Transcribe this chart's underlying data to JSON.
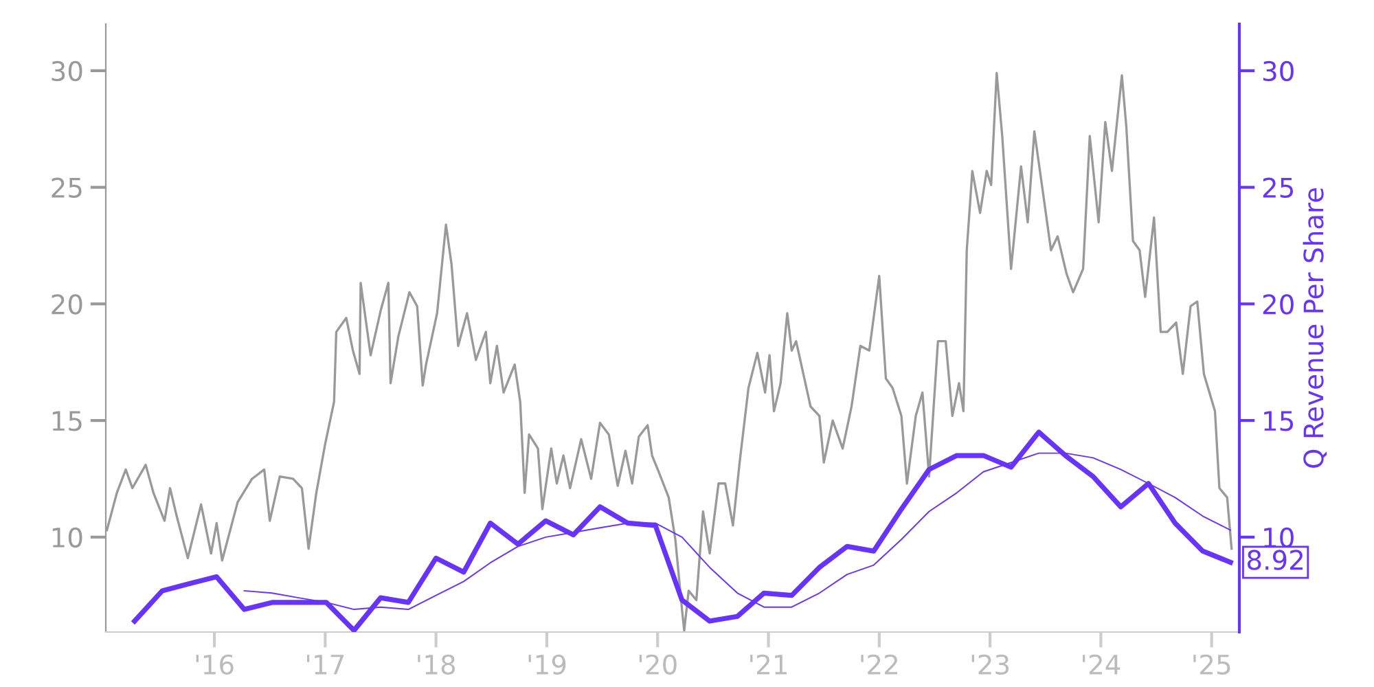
{
  "chart_data": {
    "type": "line",
    "y2label": "Q Revenue Per Share",
    "xlim": [
      2015.02,
      2025.25
    ],
    "xticks": [
      {
        "value": 2016,
        "label": "'16"
      },
      {
        "value": 2017,
        "label": "'17"
      },
      {
        "value": 2018,
        "label": "'18"
      },
      {
        "value": 2019,
        "label": "'19"
      },
      {
        "value": 2020,
        "label": "'20"
      },
      {
        "value": 2021,
        "label": "'21"
      },
      {
        "value": 2022,
        "label": "'22"
      },
      {
        "value": 2023,
        "label": "'23"
      },
      {
        "value": 2024,
        "label": "'24"
      },
      {
        "value": 2025,
        "label": "'25"
      }
    ],
    "ylim": [
      5.93,
      32
    ],
    "yticks": [
      10,
      15,
      20,
      25,
      30
    ],
    "y2lim": [
      5.93,
      32
    ],
    "y2ticks": [
      10,
      15,
      20,
      25,
      30
    ],
    "grid": false,
    "legend": false,
    "annotations": [
      {
        "text": "8.92",
        "x": 2025.17,
        "y": 8.92
      }
    ],
    "series": [
      {
        "color": "#999999",
        "x": [
          2015.03,
          2015.12,
          2015.2,
          2015.26,
          2015.38,
          2015.45,
          2015.55,
          2015.6,
          2015.66,
          2015.76,
          2015.88,
          2015.97,
          2016.02,
          2016.07,
          2016.21,
          2016.34,
          2016.45,
          2016.5,
          2016.59,
          2016.71,
          2016.79,
          2016.85,
          2016.92,
          2017.0,
          2017.08,
          2017.1,
          2017.19,
          2017.25,
          2017.31,
          2017.32,
          2017.41,
          2017.5,
          2017.57,
          2017.59,
          2017.66,
          2017.76,
          2017.83,
          2017.88,
          2017.91,
          2018.01,
          2018.09,
          2018.14,
          2018.2,
          2018.28,
          2018.36,
          2018.45,
          2018.49,
          2018.55,
          2018.61,
          2018.71,
          2018.76,
          2018.8,
          2018.84,
          2018.92,
          2018.96,
          2019.04,
          2019.09,
          2019.15,
          2019.21,
          2019.31,
          2019.4,
          2019.48,
          2019.56,
          2019.64,
          2019.71,
          2019.77,
          2019.83,
          2019.91,
          2019.95,
          2020.01,
          2020.1,
          2020.16,
          2020.22,
          2020.24,
          2020.28,
          2020.35,
          2020.41,
          2020.47,
          2020.55,
          2020.61,
          2020.68,
          2020.74,
          2020.82,
          2020.9,
          2020.97,
          2021.01,
          2021.05,
          2021.11,
          2021.17,
          2021.21,
          2021.25,
          2021.38,
          2021.46,
          2021.5,
          2021.58,
          2021.67,
          2021.75,
          2021.83,
          2021.91,
          2022.0,
          2022.06,
          2022.12,
          2022.2,
          2022.25,
          2022.33,
          2022.39,
          2022.45,
          2022.53,
          2022.6,
          2022.66,
          2022.72,
          2022.76,
          2022.79,
          2022.84,
          2022.91,
          2022.97,
          2023.01,
          2023.06,
          2023.11,
          2023.19,
          2023.28,
          2023.34,
          2023.4,
          2023.48,
          2023.55,
          2023.61,
          2023.69,
          2023.75,
          2023.84,
          2023.9,
          2023.98,
          2024.04,
          2024.1,
          2024.19,
          2024.23,
          2024.29,
          2024.35,
          2024.4,
          2024.48,
          2024.54,
          2024.6,
          2024.68,
          2024.74,
          2024.81,
          2024.87,
          2024.93,
          2025.03,
          2025.07,
          2025.14,
          2025.18
        ],
        "values": [
          10.3,
          11.9,
          12.9,
          12.1,
          13.1,
          11.9,
          10.7,
          12.1,
          10.9,
          9.1,
          11.4,
          9.3,
          10.6,
          9.0,
          11.5,
          12.5,
          12.9,
          10.7,
          12.6,
          12.5,
          12.1,
          9.5,
          11.9,
          14.0,
          15.8,
          18.8,
          19.4,
          18.0,
          17.0,
          20.9,
          17.8,
          19.7,
          20.9,
          16.6,
          18.6,
          20.5,
          19.9,
          16.5,
          17.4,
          19.6,
          23.4,
          21.7,
          18.2,
          19.6,
          17.6,
          18.8,
          16.6,
          18.2,
          16.2,
          17.4,
          15.8,
          11.9,
          14.4,
          13.8,
          11.2,
          13.8,
          12.3,
          13.5,
          12.1,
          14.2,
          12.5,
          14.9,
          14.4,
          12.2,
          13.7,
          12.3,
          14.3,
          14.8,
          13.5,
          12.8,
          11.7,
          9.9,
          6.9,
          6.0,
          7.7,
          7.3,
          11.1,
          9.3,
          12.3,
          12.3,
          10.5,
          13.2,
          16.4,
          17.9,
          16.2,
          17.8,
          15.4,
          16.6,
          19.6,
          18.0,
          18.4,
          15.6,
          15.2,
          13.2,
          15.0,
          13.8,
          15.6,
          18.2,
          18.0,
          21.2,
          16.8,
          16.4,
          15.2,
          12.3,
          15.2,
          16.2,
          12.6,
          18.4,
          18.4,
          15.2,
          16.6,
          15.4,
          22.3,
          25.7,
          23.9,
          25.7,
          25.1,
          29.9,
          27.2,
          21.5,
          25.9,
          23.5,
          27.4,
          24.7,
          22.3,
          22.9,
          21.3,
          20.5,
          21.5,
          27.2,
          23.5,
          27.8,
          25.7,
          29.8,
          27.6,
          22.7,
          22.3,
          20.3,
          23.7,
          18.8,
          18.8,
          19.2,
          17.0,
          19.9,
          20.1,
          17.0,
          15.4,
          12.1,
          11.7,
          9.5
        ]
      },
      {
        "color": "#6633ff",
        "axis": "y2",
        "x": [
          2015.28,
          2015.53,
          2015.77,
          2016.02,
          2016.27,
          2016.52,
          2016.76,
          2017.01,
          2017.26,
          2017.5,
          2017.75,
          2018.0,
          2018.25,
          2018.49,
          2018.74,
          2018.99,
          2019.24,
          2019.48,
          2019.73,
          2019.98,
          2020.22,
          2020.47,
          2020.72,
          2020.96,
          2021.21,
          2021.46,
          2021.71,
          2021.95,
          2022.2,
          2022.45,
          2022.7,
          2022.94,
          2023.19,
          2023.44,
          2023.68,
          2023.93,
          2024.18,
          2024.43,
          2024.67,
          2024.92,
          2025.17
        ],
        "values": [
          6.4,
          7.7,
          8.0,
          8.3,
          6.9,
          7.2,
          7.2,
          7.2,
          6.0,
          7.4,
          7.2,
          9.1,
          8.5,
          10.6,
          9.7,
          10.7,
          10.1,
          11.3,
          10.6,
          10.5,
          7.3,
          6.4,
          6.6,
          7.6,
          7.5,
          8.7,
          9.6,
          9.4,
          11.2,
          12.9,
          13.5,
          13.5,
          13.0,
          14.5,
          13.5,
          12.6,
          11.3,
          12.3,
          10.6,
          9.4,
          8.92
        ]
      },
      {
        "color": "#6633ff",
        "axis": "y2",
        "x": [
          2016.27,
          2016.52,
          2016.76,
          2017.01,
          2017.26,
          2017.5,
          2017.75,
          2018.0,
          2018.25,
          2018.49,
          2018.74,
          2018.99,
          2019.24,
          2019.48,
          2019.73,
          2019.98,
          2020.22,
          2020.47,
          2020.72,
          2020.96,
          2021.21,
          2021.46,
          2021.71,
          2021.95,
          2022.2,
          2022.45,
          2022.7,
          2022.94,
          2023.19,
          2023.44,
          2023.68,
          2023.93,
          2024.18,
          2024.43,
          2024.67,
          2024.92,
          2025.17
        ],
        "values": [
          7.7,
          7.6,
          7.4,
          7.2,
          6.9,
          7.0,
          6.9,
          7.5,
          8.1,
          8.9,
          9.6,
          10.0,
          10.2,
          10.4,
          10.6,
          10.6,
          10.0,
          8.7,
          7.6,
          7.0,
          7.0,
          7.6,
          8.4,
          8.8,
          9.9,
          11.1,
          11.9,
          12.8,
          13.2,
          13.6,
          13.6,
          13.4,
          12.9,
          12.3,
          11.7,
          10.9,
          10.3
        ]
      }
    ]
  }
}
